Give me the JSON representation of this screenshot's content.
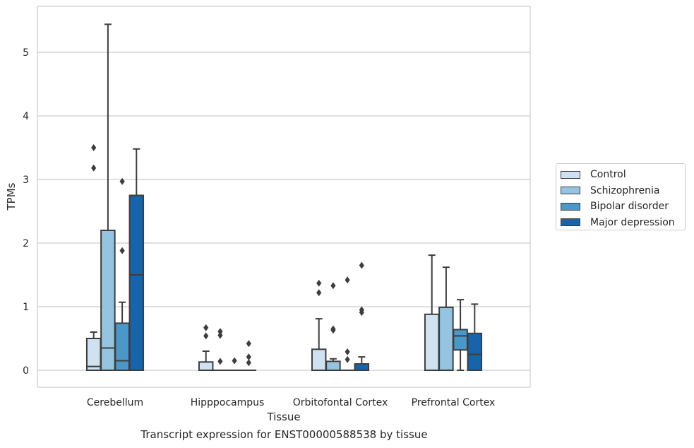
{
  "caption": "Transcript expression for ENST00000588538 by tissue",
  "chart_data": {
    "type": "box",
    "xlabel": "Tissue",
    "ylabel": "TPMs",
    "ylim": [
      -0.27,
      5.7
    ],
    "yticks": [
      0,
      1,
      2,
      3,
      4,
      5
    ],
    "grid": true,
    "legend_position": "right",
    "categories": [
      "Cerebellum",
      "Hipppocampus",
      "Orbitofontal Cortex",
      "Prefrontal Cortex"
    ],
    "series": [
      {
        "name": "Control",
        "color": "#d0e1f2",
        "boxes": [
          {
            "q1": 0,
            "median": 0.06,
            "q3": 0.5,
            "whisker_low": 0,
            "whisker_high": 0.6,
            "outliers": [
              3.18,
              3.5
            ]
          },
          {
            "q1": 0,
            "median": 0,
            "q3": 0.13,
            "whisker_low": 0,
            "whisker_high": 0.3,
            "outliers": [
              0.54,
              0.67
            ]
          },
          {
            "q1": 0,
            "median": 0,
            "q3": 0.33,
            "whisker_low": 0,
            "whisker_high": 0.81,
            "outliers": [
              1.22,
              1.37
            ]
          },
          {
            "q1": 0,
            "median": 0,
            "q3": 0.88,
            "whisker_low": 0,
            "whisker_high": 1.81,
            "outliers": []
          }
        ]
      },
      {
        "name": "Schizophrenia",
        "color": "#94c4df",
        "boxes": [
          {
            "q1": 0,
            "median": 0.35,
            "q3": 2.2,
            "whisker_low": 0,
            "whisker_high": 5.44,
            "outliers": []
          },
          {
            "q1": 0,
            "median": 0,
            "q3": 0,
            "whisker_low": 0,
            "whisker_high": 0,
            "outliers": [
              0.14,
              0.55,
              0.61
            ]
          },
          {
            "q1": 0,
            "median": 0,
            "q3": 0.14,
            "whisker_low": 0,
            "whisker_high": 0.18,
            "outliers": [
              0.63,
              0.65,
              1.33
            ]
          },
          {
            "q1": 0,
            "median": 0,
            "q3": 0.99,
            "whisker_low": 0,
            "whisker_high": 1.62,
            "outliers": []
          }
        ]
      },
      {
        "name": "Bipolar disorder",
        "color": "#4a98c9",
        "boxes": [
          {
            "q1": 0,
            "median": 0.15,
            "q3": 0.74,
            "whisker_low": 0,
            "whisker_high": 1.07,
            "outliers": [
              1.88,
              2.97
            ]
          },
          {
            "q1": 0,
            "median": 0,
            "q3": 0,
            "whisker_low": 0,
            "whisker_high": 0,
            "outliers": [
              0.15
            ]
          },
          {
            "q1": 0,
            "median": 0,
            "q3": 0,
            "whisker_low": 0,
            "whisker_high": 0,
            "outliers": [
              0.17,
              0.29,
              1.42
            ]
          },
          {
            "q1": 0.32,
            "median": 0.54,
            "q3": 0.64,
            "whisker_low": 0,
            "whisker_high": 1.11,
            "outliers": []
          }
        ]
      },
      {
        "name": "Major depression",
        "color": "#1764ab",
        "boxes": [
          {
            "q1": 0,
            "median": 1.5,
            "q3": 2.75,
            "whisker_low": 0,
            "whisker_high": 3.48,
            "outliers": []
          },
          {
            "q1": 0,
            "median": 0,
            "q3": 0,
            "whisker_low": 0,
            "whisker_high": 0,
            "outliers": [
              0.12,
              0.21,
              0.42
            ]
          },
          {
            "q1": 0,
            "median": 0,
            "q3": 0.1,
            "whisker_low": 0,
            "whisker_high": 0.21,
            "outliers": [
              0.91,
              0.95,
              1.65
            ]
          },
          {
            "q1": 0,
            "median": 0.25,
            "q3": 0.58,
            "whisker_low": 0,
            "whisker_high": 1.04,
            "outliers": []
          }
        ]
      }
    ]
  }
}
